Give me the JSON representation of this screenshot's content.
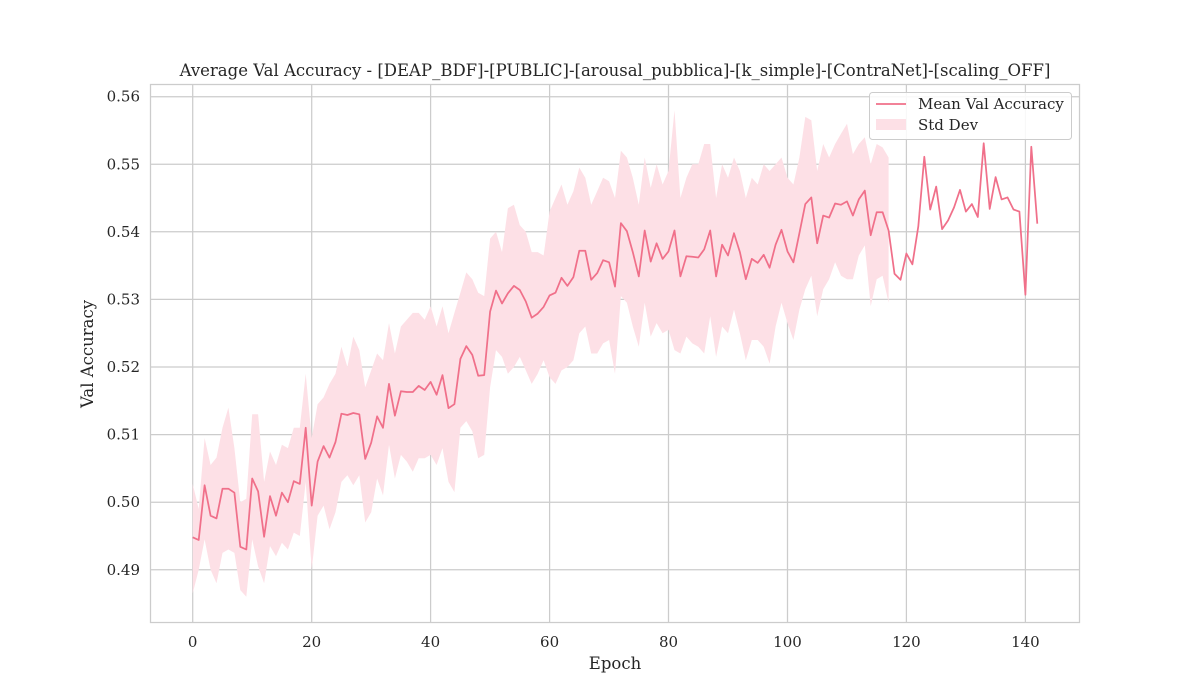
{
  "colors": {
    "line": "#f0708a",
    "band": "#fde0e6",
    "grid": "#cccccc",
    "frame": "#cccccc",
    "text": "#262626"
  },
  "chart_data": {
    "type": "line",
    "title": "Average Val Accuracy - [DEAP_BDF]-[PUBLIC]-[arousal_pubblica]-[k_simple]-[ContraNet]-[scaling_OFF]",
    "xlabel": "Epoch",
    "ylabel": "Val Accuracy",
    "xlim": [
      -7.1,
      149.1
    ],
    "ylim": [
      0.4822,
      0.5618
    ],
    "xticks": [
      0,
      20,
      40,
      60,
      80,
      100,
      120,
      140
    ],
    "xtick_labels": [
      "0",
      "20",
      "40",
      "60",
      "80",
      "100",
      "120",
      "140"
    ],
    "yticks": [
      0.49,
      0.5,
      0.51,
      0.52,
      0.53,
      0.54,
      0.55,
      0.56
    ],
    "ytick_labels": [
      "0.49",
      "0.50",
      "0.51",
      "0.52",
      "0.53",
      "0.54",
      "0.55",
      "0.56"
    ],
    "grid": true,
    "legend_position": "top-right",
    "legend": [
      "Mean Val Accuracy",
      "Std Dev"
    ],
    "x": [
      0,
      1,
      2,
      3,
      4,
      5,
      6,
      7,
      8,
      9,
      10,
      11,
      12,
      13,
      14,
      15,
      16,
      17,
      18,
      19,
      20,
      21,
      22,
      23,
      24,
      25,
      26,
      27,
      28,
      29,
      30,
      31,
      32,
      33,
      34,
      35,
      36,
      37,
      38,
      39,
      40,
      41,
      42,
      43,
      44,
      45,
      46,
      47,
      48,
      49,
      50,
      51,
      52,
      53,
      54,
      55,
      56,
      57,
      58,
      59,
      60,
      61,
      62,
      63,
      64,
      65,
      66,
      67,
      68,
      69,
      70,
      71,
      72,
      73,
      74,
      75,
      76,
      77,
      78,
      79,
      80,
      81,
      82,
      83,
      84,
      85,
      86,
      87,
      88,
      89,
      90,
      91,
      92,
      93,
      94,
      95,
      96,
      97,
      98,
      99,
      100,
      101,
      102,
      103,
      104,
      105,
      106,
      107,
      108,
      109,
      110,
      111,
      112,
      113,
      114,
      115,
      116,
      117,
      118,
      119,
      120,
      121,
      122,
      123,
      124,
      125,
      126,
      127,
      128,
      129,
      130,
      131,
      132,
      133,
      134,
      135,
      136,
      137,
      138,
      139,
      140,
      141,
      142
    ],
    "series": [
      {
        "name": "Mean Val Accuracy",
        "values": [
          0.4948,
          0.4944,
          0.5025,
          0.498,
          0.4976,
          0.502,
          0.502,
          0.5014,
          0.4934,
          0.493,
          0.5035,
          0.5016,
          0.4949,
          0.5009,
          0.498,
          0.5014,
          0.5,
          0.5031,
          0.5027,
          0.511,
          0.4995,
          0.506,
          0.5083,
          0.5066,
          0.5089,
          0.5131,
          0.5129,
          0.5132,
          0.513,
          0.5064,
          0.5088,
          0.5127,
          0.511,
          0.5175,
          0.5128,
          0.5164,
          0.5163,
          0.5163,
          0.5172,
          0.5166,
          0.5178,
          0.5159,
          0.5188,
          0.5139,
          0.5145,
          0.5212,
          0.5231,
          0.5218,
          0.5187,
          0.5188,
          0.5282,
          0.5313,
          0.5294,
          0.5309,
          0.532,
          0.5314,
          0.5297,
          0.5273,
          0.5279,
          0.5289,
          0.5306,
          0.531,
          0.5332,
          0.532,
          0.5333,
          0.5372,
          0.5372,
          0.5329,
          0.5339,
          0.5358,
          0.5355,
          0.5319,
          0.5413,
          0.5401,
          0.537,
          0.5334,
          0.5402,
          0.5356,
          0.5383,
          0.536,
          0.5371,
          0.5402,
          0.5334,
          0.5364,
          0.5363,
          0.5362,
          0.5374,
          0.5402,
          0.5334,
          0.5381,
          0.5365,
          0.5398,
          0.537,
          0.533,
          0.536,
          0.5354,
          0.5366,
          0.5347,
          0.5381,
          0.5403,
          0.5371,
          0.5355,
          0.5398,
          0.5441,
          0.5451,
          0.5383,
          0.5424,
          0.5421,
          0.5442,
          0.544,
          0.5445,
          0.5424,
          0.5448,
          0.5461,
          0.5395,
          0.5429,
          0.5429,
          0.5402,
          0.5338,
          0.5329,
          0.5368,
          0.5352,
          0.5408,
          0.5511,
          0.5433,
          0.5467,
          0.5404,
          0.5417,
          0.5436,
          0.5462,
          0.543,
          0.5441,
          0.5422,
          0.5531,
          0.5434,
          0.5481,
          0.5448,
          0.5451,
          0.5433,
          0.543,
          0.5307,
          0.5526,
          0.5412
        ]
      },
      {
        "name": "Std Dev",
        "upper": [
          0.5027,
          0.499,
          0.5095,
          0.5055,
          0.5066,
          0.511,
          0.514,
          0.508,
          0.5,
          0.5005,
          0.513,
          0.513,
          0.503,
          0.5075,
          0.5055,
          0.5085,
          0.508,
          0.511,
          0.511,
          0.519,
          0.5095,
          0.5145,
          0.5155,
          0.5175,
          0.519,
          0.523,
          0.52,
          0.5245,
          0.5225,
          0.517,
          0.5195,
          0.522,
          0.521,
          0.5265,
          0.522,
          0.526,
          0.527,
          0.528,
          0.528,
          0.527,
          0.529,
          0.526,
          0.529,
          0.525,
          0.528,
          0.531,
          0.534,
          0.533,
          0.531,
          0.5305,
          0.539,
          0.54,
          0.537,
          0.5435,
          0.544,
          0.541,
          0.54,
          0.537,
          0.537,
          0.5365,
          0.543,
          0.545,
          0.547,
          0.544,
          0.546,
          0.5495,
          0.548,
          0.544,
          0.546,
          0.548,
          0.5475,
          0.545,
          0.552,
          0.551,
          0.548,
          0.544,
          0.551,
          0.5465,
          0.55,
          0.547,
          0.549,
          0.558,
          0.545,
          0.548,
          0.55,
          0.55,
          0.553,
          0.553,
          0.545,
          0.55,
          0.548,
          0.551,
          0.549,
          0.545,
          0.548,
          0.547,
          0.55,
          0.549,
          0.55,
          0.551,
          0.548,
          0.547,
          0.551,
          0.557,
          0.5565,
          0.549,
          0.553,
          0.551,
          0.553,
          0.5545,
          0.556,
          0.5515,
          0.553,
          0.554,
          0.55,
          0.553,
          0.5525,
          0.551,
          null,
          null,
          null,
          null,
          null,
          null,
          null,
          null,
          null,
          null,
          null,
          null,
          null,
          null,
          null,
          null,
          null,
          null,
          null,
          null,
          null,
          null,
          null,
          null,
          null
        ],
        "lower": [
          0.4865,
          0.49,
          0.4945,
          0.49,
          0.488,
          0.4925,
          0.493,
          0.4925,
          0.487,
          0.486,
          0.4945,
          0.4905,
          0.488,
          0.4935,
          0.492,
          0.494,
          0.493,
          0.4955,
          0.495,
          0.503,
          0.49,
          0.498,
          0.4995,
          0.496,
          0.4985,
          0.503,
          0.504,
          0.5025,
          0.504,
          0.497,
          0.4985,
          0.5035,
          0.501,
          0.5085,
          0.5035,
          0.507,
          0.506,
          0.5045,
          0.5065,
          0.5065,
          0.507,
          0.5055,
          0.508,
          0.503,
          0.5015,
          0.511,
          0.512,
          0.5105,
          0.5065,
          0.507,
          0.517,
          0.5225,
          0.5215,
          0.519,
          0.52,
          0.5215,
          0.5195,
          0.5175,
          0.519,
          0.521,
          0.5185,
          0.5175,
          0.5195,
          0.52,
          0.521,
          0.525,
          0.526,
          0.522,
          0.522,
          0.5235,
          0.524,
          0.519,
          0.5305,
          0.5295,
          0.526,
          0.523,
          0.5295,
          0.5245,
          0.5265,
          0.525,
          0.5255,
          0.5225,
          0.522,
          0.5245,
          0.5235,
          0.523,
          0.522,
          0.5275,
          0.5215,
          0.526,
          0.525,
          0.5285,
          0.525,
          0.521,
          0.524,
          0.524,
          0.523,
          0.5205,
          0.526,
          0.5295,
          0.5265,
          0.524,
          0.5285,
          0.5315,
          0.5335,
          0.5275,
          0.5315,
          0.533,
          0.5355,
          0.5335,
          0.533,
          0.533,
          0.5365,
          0.538,
          0.529,
          0.533,
          0.5335,
          0.5295,
          null,
          null,
          null,
          null,
          null,
          null,
          null,
          null,
          null,
          null,
          null,
          null,
          null,
          null,
          null,
          null,
          null,
          null,
          null,
          null,
          null,
          null,
          null,
          null,
          null
        ]
      }
    ]
  }
}
